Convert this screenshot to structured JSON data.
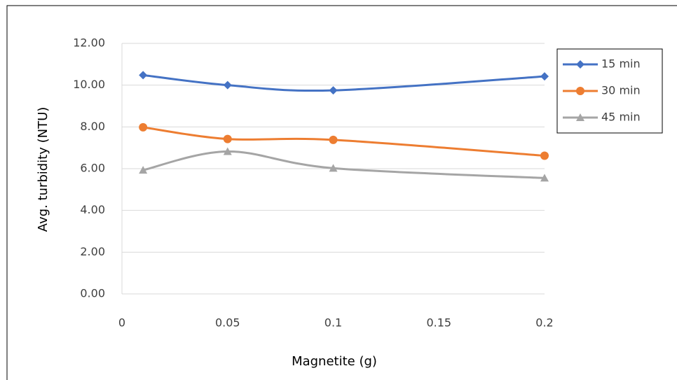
{
  "chart_data": {
    "type": "line",
    "smooth": true,
    "x_label": "Magnetite (g)",
    "y_label": "Avg. turbidity (NTU)",
    "x": [
      0.01,
      0.05,
      0.1,
      0.2
    ],
    "series": [
      {
        "name": "15 min",
        "color": "#4472c4",
        "marker": "diamond",
        "values": [
          10.48,
          10.0,
          9.75,
          10.42
        ]
      },
      {
        "name": "30 min",
        "color": "#ed7d31",
        "marker": "circle",
        "values": [
          7.98,
          7.42,
          7.38,
          6.62
        ]
      },
      {
        "name": "45 min",
        "color": "#a5a5a5",
        "marker": "triangle",
        "values": [
          5.93,
          6.82,
          6.02,
          5.55
        ]
      }
    ],
    "xlim": [
      0,
      0.2
    ],
    "xticks": [
      0,
      0.05,
      0.1,
      0.15,
      0.2
    ],
    "ylim": [
      0,
      12
    ],
    "yticks": [
      {
        "value": 0,
        "label": "0.00"
      },
      {
        "value": 2,
        "label": "2.00"
      },
      {
        "value": 4,
        "label": "4.00"
      },
      {
        "value": 6,
        "label": "6.00"
      },
      {
        "value": 8,
        "label": "8.00"
      },
      {
        "value": 10,
        "label": "10.00"
      },
      {
        "value": 12,
        "label": "12.00"
      }
    ],
    "grid": true,
    "legend": "right"
  }
}
